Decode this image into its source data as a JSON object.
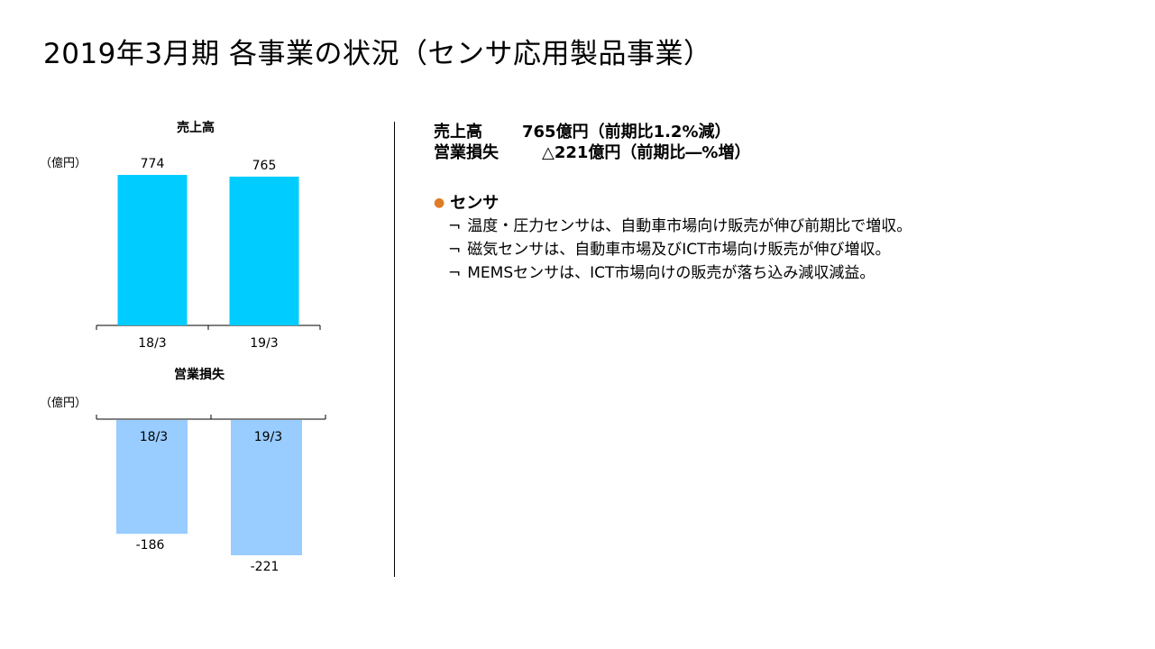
{
  "title": "2019年3月期 各事業の状況（センサ応用製品事業）",
  "colors": {
    "sales_bar": "#00ccff",
    "loss_bar": "#99ccff",
    "bullet": "#e07b24",
    "axis": "#000000"
  },
  "charts": {
    "sales": {
      "title": "売上高",
      "unit": "（億円）"
    },
    "loss": {
      "title": "営業損失",
      "unit": "（億円）"
    }
  },
  "chart_data": [
    {
      "type": "bar",
      "title": "売上高",
      "ylabel": "（億円）",
      "categories": [
        "18/3",
        "19/3"
      ],
      "values": [
        774,
        765
      ],
      "data_labels": [
        "774",
        "765"
      ],
      "ylim": [
        0,
        774
      ],
      "grid": false,
      "color": "#00ccff"
    },
    {
      "type": "bar",
      "title": "営業損失",
      "ylabel": "（億円）",
      "categories": [
        "18/3",
        "19/3"
      ],
      "values": [
        -186,
        -221
      ],
      "data_labels": [
        "-186",
        "-221"
      ],
      "ylim": [
        -221,
        0
      ],
      "grid": false,
      "color": "#99ccff"
    }
  ],
  "summary": {
    "sales": {
      "label": "売上高",
      "value": "765億円（前期比1.2%減）"
    },
    "profit": {
      "label": "営業損失",
      "value": "△221億円（前期比―%増）"
    }
  },
  "section": {
    "heading": "センサ",
    "bullet_mark": "¬",
    "items": [
      "温度・圧力センサは、自動車市場向け販売が伸び前期比で増収。",
      "磁気センサは、自動車市場及びICT市場向け販売が伸び増収。",
      "MEMSセンサは、ICT市場向けの販売が落ち込み減収減益。"
    ]
  }
}
